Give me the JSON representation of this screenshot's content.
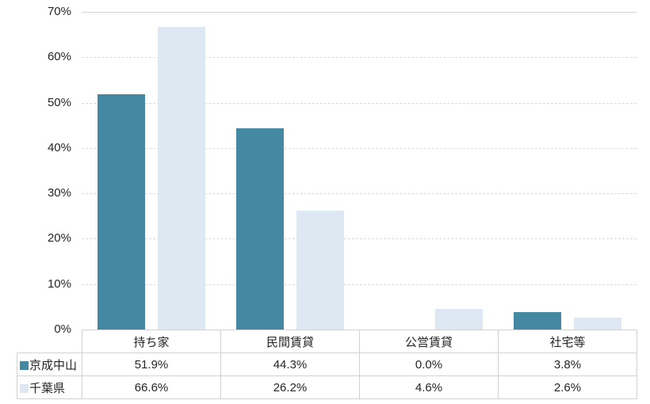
{
  "chart_data": {
    "type": "bar",
    "title": "",
    "categories": [
      "持ち家",
      "民間賃貸",
      "公営賃貸",
      "社宅等"
    ],
    "series": [
      {
        "name": "京成中山",
        "color": "#4489A1",
        "values": [
          51.9,
          44.3,
          0.0,
          3.8
        ]
      },
      {
        "name": "千葉県",
        "color": "#DDE8F3",
        "values": [
          66.6,
          26.2,
          4.6,
          2.6
        ]
      }
    ],
    "ylabel": "",
    "xlabel": "",
    "ylim": [
      0,
      70
    ],
    "yticks": [
      "0%",
      "10%",
      "20%",
      "30%",
      "40%",
      "50%",
      "60%",
      "70%"
    ],
    "grid": "horizontal-dashed",
    "legend_position": "table-left-column"
  },
  "table": {
    "column_headers": [
      "持ち家",
      "民間賃貸",
      "公営賃貸",
      "社宅等"
    ],
    "rows": [
      {
        "legend": "京成中山",
        "swatch_color": "#4489A1",
        "values": [
          "51.9%",
          "44.3%",
          "0.0%",
          "3.8%"
        ]
      },
      {
        "legend": "千葉県",
        "swatch_color": "#DDE8F3",
        "values": [
          "66.6%",
          "26.2%",
          "4.6%",
          "2.6%"
        ]
      }
    ]
  },
  "colors": {
    "series_1": "#4489A1",
    "series_2": "#DDE8F3",
    "gridline": "#D9D9D9",
    "table_border": "#D2D2D2",
    "text": "#262626",
    "background": "#FFFFFF"
  }
}
